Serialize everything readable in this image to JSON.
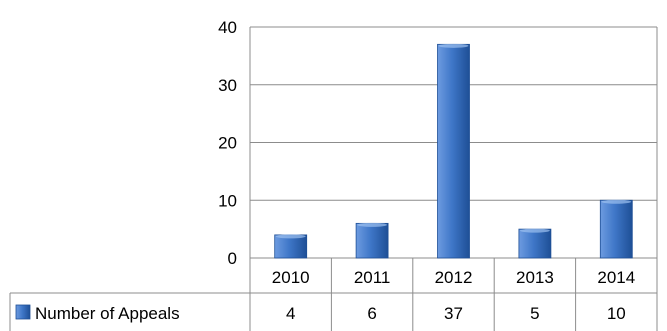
{
  "chart_data": {
    "type": "bar",
    "categories": [
      "2010",
      "2011",
      "2012",
      "2013",
      "2014"
    ],
    "series": [
      {
        "name": "Number of Appeals",
        "values": [
          4,
          6,
          37,
          5,
          10
        ]
      }
    ],
    "y_ticks": [
      "0",
      "10",
      "20",
      "30",
      "40"
    ],
    "ylim": [
      0,
      40
    ],
    "grid": true,
    "legend": "data-table-left",
    "colors": {
      "bar_light": "#6d9be0",
      "bar_mid": "#3f77c8",
      "bar_dark": "#1e4f96",
      "grid": "#8c8c8c",
      "border": "#8c8c8c"
    }
  }
}
